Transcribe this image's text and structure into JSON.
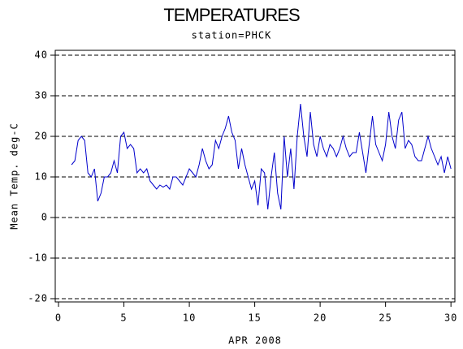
{
  "chart_data": {
    "type": "line",
    "title": "TEMPERATURES",
    "subtitle": "station=PHCK",
    "xlabel": "APR 2008",
    "ylabel": "Mean Temp. deg-C",
    "xlim": [
      -0.25,
      30.3
    ],
    "xticks": [
      0,
      5,
      10,
      15,
      20,
      25,
      30
    ],
    "ylim": [
      -20.8,
      41.2
    ],
    "yticks": [
      -20,
      -10,
      0,
      10,
      20,
      30,
      40
    ],
    "grid": true,
    "x": [
      1,
      1.25,
      1.5,
      1.75,
      2,
      2.25,
      2.5,
      2.75,
      3,
      3.25,
      3.5,
      3.75,
      4,
      4.25,
      4.5,
      4.75,
      5,
      5.25,
      5.5,
      5.75,
      6,
      6.25,
      6.5,
      6.75,
      7,
      7.25,
      7.5,
      7.75,
      8,
      8.25,
      8.5,
      8.75,
      9,
      9.25,
      9.5,
      9.75,
      10,
      10.25,
      10.5,
      10.75,
      11,
      11.25,
      11.5,
      11.75,
      12,
      12.25,
      12.5,
      12.75,
      13,
      13.25,
      13.5,
      13.75,
      14,
      14.25,
      14.5,
      14.75,
      15,
      15.25,
      15.5,
      15.75,
      16,
      16.25,
      16.5,
      16.75,
      17,
      17.25,
      17.5,
      17.75,
      18,
      18.25,
      18.5,
      18.75,
      19,
      19.25,
      19.5,
      19.75,
      20,
      20.25,
      20.5,
      20.75,
      21,
      21.25,
      21.5,
      21.75,
      22,
      22.25,
      22.5,
      22.75,
      23,
      23.25,
      23.5,
      23.75,
      24,
      24.25,
      24.5,
      24.75,
      25,
      25.25,
      25.5,
      25.75,
      26,
      26.25,
      26.5,
      26.75,
      27,
      27.25,
      27.5,
      27.75,
      28,
      28.25,
      28.5,
      28.75,
      29,
      29.25,
      29.5,
      29.75,
      30
    ],
    "series": [
      {
        "name": "Mean Temp",
        "color": "#0000cc",
        "values": [
          13,
          14,
          19,
          20,
          19,
          11,
          10,
          12,
          4,
          6,
          10,
          10,
          11,
          14,
          11,
          20,
          21,
          17,
          18,
          17,
          11,
          12,
          11,
          12,
          9,
          8,
          7,
          8,
          7.5,
          8,
          7,
          10,
          10,
          9,
          8,
          10,
          12,
          11,
          10,
          13,
          17,
          14,
          12,
          13,
          19,
          17,
          20,
          22,
          25,
          21,
          19,
          12,
          17,
          13,
          10,
          7,
          9,
          3,
          12,
          11,
          2,
          10,
          16,
          6,
          2,
          20,
          10,
          17,
          7,
          20,
          28,
          20,
          15,
          26,
          18,
          15,
          20,
          17,
          15,
          18,
          17,
          15,
          17,
          20,
          17,
          15,
          16,
          16,
          21,
          16,
          11,
          18,
          25,
          18,
          16,
          14,
          18,
          26,
          20,
          17,
          24,
          26,
          17,
          19,
          18,
          15,
          14,
          14,
          17,
          20,
          17,
          15,
          13,
          15,
          11,
          15,
          12
        ]
      }
    ]
  }
}
